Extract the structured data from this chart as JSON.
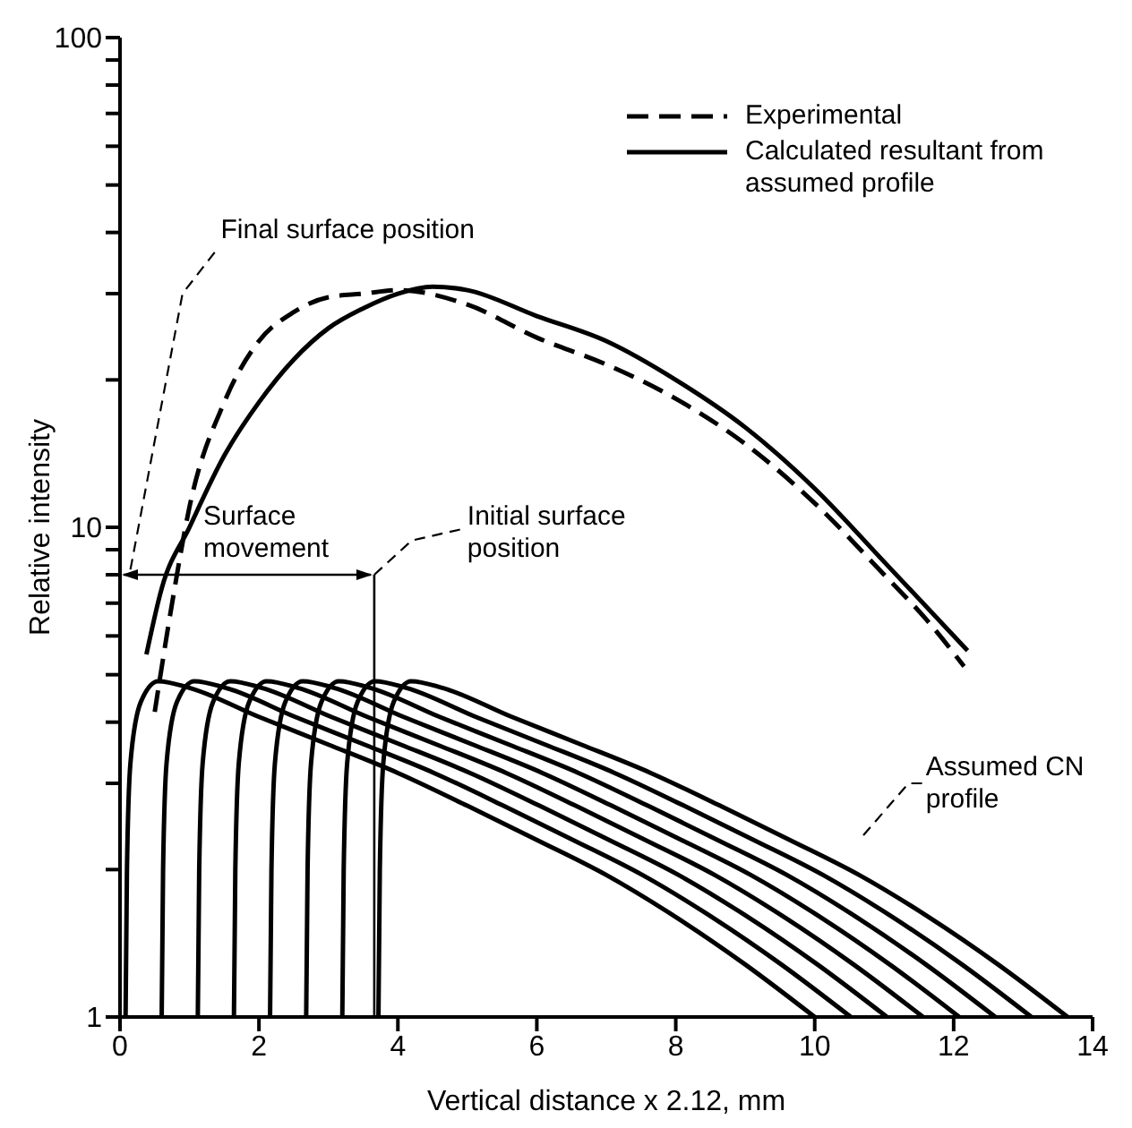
{
  "chart_data": {
    "type": "line",
    "xlabel": "Vertical distance x 2.12,  mm",
    "ylabel": "Relative intensity",
    "log": "y",
    "xlim": [
      0,
      14
    ],
    "xticks": [
      0,
      2,
      4,
      6,
      8,
      10,
      12,
      14
    ],
    "ylim": [
      1,
      100
    ],
    "yticks": [
      1,
      {
        "value": 2,
        "label": null
      },
      {
        "value": 3,
        "label": null
      },
      {
        "value": 4,
        "label": null
      },
      {
        "value": 5,
        "label": null
      },
      {
        "value": 6,
        "label": null
      },
      {
        "value": 7,
        "label": null
      },
      {
        "value": 8,
        "label": null
      },
      {
        "value": 9,
        "label": null
      },
      10,
      {
        "value": 20,
        "label": null
      },
      {
        "value": 30,
        "label": null
      },
      {
        "value": 40,
        "label": null
      },
      {
        "value": 50,
        "label": null
      },
      {
        "value": 60,
        "label": null
      },
      {
        "value": 70,
        "label": null
      },
      {
        "value": 80,
        "label": null
      },
      {
        "value": 90,
        "label": null
      },
      100
    ],
    "grid": false,
    "legend": "top right",
    "marker": "none",
    "annotations": [
      "Final surface position",
      "Surface movement",
      "Initial surface position",
      "Assumed CN profile"
    ],
    "series": [
      {
        "name": "Experimental",
        "color": "#000000",
        "line_style": "dashed",
        "x": [
          0.5,
          0.75,
          1.0,
          1.5,
          2,
          2.5,
          3,
          3.5,
          4,
          5,
          6,
          7,
          8,
          9,
          10,
          11,
          11.6,
          12.15
        ],
        "values": [
          4.2,
          7,
          11,
          18,
          24,
          27.5,
          29.5,
          30,
          30.5,
          28.5,
          24.4,
          21.5,
          18.3,
          14.8,
          11.2,
          8,
          6.5,
          5.2
        ]
      },
      {
        "name": "Calculated resultant from assumed profile",
        "color": "#000000",
        "line_style": "solid",
        "x": [
          0.38,
          0.6,
          1,
          1.5,
          2,
          2.5,
          3,
          3.5,
          4,
          4.5,
          5,
          6,
          7,
          8,
          9,
          10,
          11,
          12.2
        ],
        "values": [
          5.5,
          7.5,
          10,
          14,
          18,
          22,
          25.5,
          28,
          30,
          31,
          30.5,
          27,
          24,
          20,
          16,
          12,
          8.5,
          5.6
        ]
      },
      {
        "color": "#000000",
        "line_style": "solid",
        "x": [
          0.08,
          0.1,
          0.15,
          0.3,
          0.55,
          1,
          2,
          3,
          4,
          5,
          6,
          7,
          8,
          9,
          10
        ],
        "values": [
          1,
          2,
          3.3,
          4.4,
          4.85,
          4.7,
          4.1,
          3.6,
          3.15,
          2.7,
          2.3,
          1.95,
          1.6,
          1.28,
          1
        ]
      },
      {
        "color": "#000000",
        "line_style": "solid",
        "x": [
          0.6,
          0.62,
          0.67,
          0.82,
          1.07,
          1.52,
          2.52,
          3.52,
          4.52,
          5.52,
          6.52,
          7.52,
          8.52,
          9.52,
          10.52
        ],
        "values": [
          1,
          2,
          3.3,
          4.4,
          4.85,
          4.7,
          4.1,
          3.6,
          3.15,
          2.7,
          2.3,
          1.95,
          1.6,
          1.28,
          1
        ]
      },
      {
        "color": "#000000",
        "line_style": "solid",
        "x": [
          1.12,
          1.14,
          1.19,
          1.34,
          1.59,
          2.04,
          3.04,
          4.04,
          5.04,
          6.04,
          7.04,
          8.04,
          9.04,
          10.04,
          11.04
        ],
        "values": [
          1,
          2,
          3.3,
          4.4,
          4.85,
          4.7,
          4.1,
          3.6,
          3.15,
          2.7,
          2.3,
          1.95,
          1.6,
          1.28,
          1
        ]
      },
      {
        "color": "#000000",
        "line_style": "solid",
        "x": [
          1.64,
          1.66,
          1.71,
          1.86,
          2.11,
          2.56,
          3.56,
          4.56,
          5.56,
          6.56,
          7.56,
          8.56,
          9.56,
          10.56,
          11.56
        ],
        "values": [
          1,
          2,
          3.3,
          4.4,
          4.85,
          4.7,
          4.1,
          3.6,
          3.15,
          2.7,
          2.3,
          1.95,
          1.6,
          1.28,
          1
        ]
      },
      {
        "color": "#000000",
        "line_style": "solid",
        "x": [
          2.16,
          2.18,
          2.23,
          2.38,
          2.63,
          3.08,
          4.08,
          5.08,
          6.08,
          7.08,
          8.08,
          9.08,
          10.08,
          11.08,
          12.08
        ],
        "values": [
          1,
          2,
          3.3,
          4.4,
          4.85,
          4.7,
          4.1,
          3.6,
          3.15,
          2.7,
          2.3,
          1.95,
          1.6,
          1.28,
          1
        ]
      },
      {
        "color": "#000000",
        "line_style": "solid",
        "x": [
          2.68,
          2.7,
          2.75,
          2.9,
          3.15,
          3.6,
          4.6,
          5.6,
          6.6,
          7.6,
          8.6,
          9.6,
          10.6,
          11.6,
          12.6
        ],
        "values": [
          1,
          2,
          3.3,
          4.4,
          4.85,
          4.7,
          4.1,
          3.6,
          3.15,
          2.7,
          2.3,
          1.95,
          1.6,
          1.28,
          1
        ]
      },
      {
        "color": "#000000",
        "line_style": "solid",
        "x": [
          3.2,
          3.22,
          3.27,
          3.42,
          3.67,
          4.12,
          5.12,
          6.12,
          7.12,
          8.12,
          9.12,
          10.12,
          11.12,
          12.12,
          13.12
        ],
        "values": [
          1,
          2,
          3.3,
          4.4,
          4.85,
          4.7,
          4.1,
          3.6,
          3.15,
          2.7,
          2.3,
          1.95,
          1.6,
          1.28,
          1
        ]
      },
      {
        "color": "#000000",
        "line_style": "solid",
        "x": [
          3.72,
          3.74,
          3.79,
          3.94,
          4.19,
          4.64,
          5.64,
          6.64,
          7.64,
          8.64,
          9.64,
          10.64,
          11.64,
          12.64,
          13.64
        ],
        "values": [
          1,
          2,
          3.3,
          4.4,
          4.85,
          4.7,
          4.1,
          3.6,
          3.15,
          2.7,
          2.3,
          1.95,
          1.6,
          1.28,
          1
        ]
      }
    ]
  }
}
